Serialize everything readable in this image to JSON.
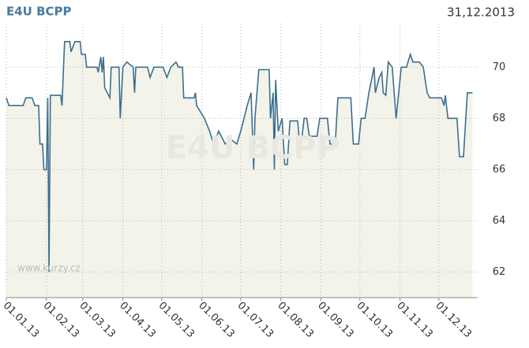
{
  "chart_data": {
    "type": "area",
    "title": "E4U BCPP",
    "subtitle": "31,12.2013",
    "watermark": "E4U BCPP",
    "source": "www.kurzy.cz",
    "xlim": [
      "2013-01-01",
      "2013-12-31"
    ],
    "xticks": [
      {
        "value": "2013-01-01",
        "label": "01.01.13"
      },
      {
        "value": "2013-02-01",
        "label": "01.02.13"
      },
      {
        "value": "2013-03-01",
        "label": "01.03.13"
      },
      {
        "value": "2013-04-01",
        "label": "01.04.13"
      },
      {
        "value": "2013-05-01",
        "label": "01.05.13"
      },
      {
        "value": "2013-06-01",
        "label": "01.06.13"
      },
      {
        "value": "2013-07-01",
        "label": "01.07.13"
      },
      {
        "value": "2013-08-01",
        "label": "01.08.13"
      },
      {
        "value": "2013-09-01",
        "label": "01.09.13"
      },
      {
        "value": "2013-10-01",
        "label": "01.10.13"
      },
      {
        "value": "2013-11-01",
        "label": "01.11.13"
      },
      {
        "value": "2013-12-01",
        "label": "01.12.13"
      }
    ],
    "ylim": [
      61,
      71.7
    ],
    "yticks": [
      62,
      64,
      66,
      68,
      70
    ],
    "grid": true,
    "series": [
      {
        "name": "E4U BCPP",
        "color": "#3c6f8f",
        "fill": "#f3f3ea",
        "x": [
          "2013-01-01",
          "2013-01-03",
          "2013-01-14",
          "2013-01-16",
          "2013-01-21",
          "2013-01-23",
          "2013-01-26",
          "2013-01-27",
          "2013-01-29",
          "2013-01-30",
          "2013-02-01",
          "2013-02-02",
          "2013-02-03",
          "2013-02-04",
          "2013-02-12",
          "2013-02-13",
          "2013-02-15",
          "2013-02-19",
          "2013-02-20",
          "2013-02-23",
          "2013-02-27",
          "2013-02-28",
          "2013-03-03",
          "2013-03-04",
          "2013-03-12",
          "2013-03-13",
          "2013-03-15",
          "2013-03-16",
          "2013-03-17",
          "2013-03-18",
          "2013-03-22",
          "2013-03-23",
          "2013-03-29",
          "2013-03-30",
          "2013-04-01",
          "2013-04-04",
          "2013-04-09",
          "2013-04-10",
          "2013-04-11",
          "2013-04-20",
          "2013-04-22",
          "2013-04-25",
          "2013-05-02",
          "2013-05-05",
          "2013-05-08",
          "2013-05-12",
          "2013-05-14",
          "2013-05-17",
          "2013-05-18",
          "2013-05-26",
          "2013-05-27",
          "2013-05-28",
          "2013-06-03",
          "2013-06-07",
          "2013-06-10",
          "2013-06-14",
          "2013-06-19",
          "2013-06-23",
          "2013-06-28",
          "2013-07-01",
          "2013-07-06",
          "2013-07-09",
          "2013-07-11",
          "2013-07-12",
          "2013-07-15",
          "2013-07-23",
          "2013-07-24",
          "2013-07-26",
          "2013-07-27",
          "2013-07-28",
          "2013-07-30",
          "2013-08-02",
          "2013-08-04",
          "2013-08-06",
          "2013-08-08",
          "2013-08-14",
          "2013-08-16",
          "2013-08-19",
          "2013-08-21",
          "2013-08-23",
          "2013-08-29",
          "2013-08-31",
          "2013-09-06",
          "2013-09-08",
          "2013-09-12",
          "2013-09-14",
          "2013-09-24",
          "2013-09-26",
          "2013-09-30",
          "2013-10-02",
          "2013-10-05",
          "2013-10-08",
          "2013-10-12",
          "2013-10-13",
          "2013-10-16",
          "2013-10-18",
          "2013-10-19",
          "2013-10-21",
          "2013-10-23",
          "2013-10-26",
          "2013-10-29",
          "2013-11-02",
          "2013-11-06",
          "2013-11-09",
          "2013-11-11",
          "2013-11-16",
          "2013-11-19",
          "2013-11-22",
          "2013-11-24",
          "2013-12-03",
          "2013-12-05",
          "2013-12-06",
          "2013-12-08",
          "2013-12-15",
          "2013-12-17",
          "2013-12-20",
          "2013-12-23",
          "2013-12-27"
        ],
        "values": [
          68.8,
          68.5,
          68.5,
          68.8,
          68.8,
          68.5,
          68.5,
          67.0,
          67.0,
          66.0,
          66.0,
          68.8,
          62.0,
          68.9,
          68.9,
          68.5,
          71.0,
          71.0,
          70.6,
          71.0,
          71.0,
          70.5,
          70.5,
          70.0,
          70.0,
          69.8,
          70.4,
          69.8,
          70.4,
          69.2,
          68.8,
          70.0,
          70.0,
          68.0,
          70.0,
          70.2,
          70.0,
          69.0,
          70.0,
          70.0,
          69.6,
          70.0,
          70.0,
          69.6,
          70.0,
          70.2,
          70.0,
          70.0,
          68.8,
          68.8,
          69.0,
          68.5,
          68.0,
          67.5,
          67.0,
          67.5,
          67.0,
          67.2,
          67.0,
          67.5,
          68.5,
          69.0,
          66.0,
          68.0,
          69.9,
          69.9,
          68.0,
          69.0,
          66.0,
          69.5,
          67.5,
          68.0,
          66.2,
          66.2,
          67.9,
          67.9,
          66.7,
          68.0,
          68.0,
          67.3,
          67.3,
          68.0,
          68.0,
          67.0,
          67.0,
          68.8,
          68.8,
          67.0,
          67.0,
          68.0,
          68.0,
          69.0,
          70.0,
          69.0,
          69.6,
          69.8,
          69.0,
          68.9,
          70.2,
          70.0,
          68.0,
          70.0,
          70.0,
          70.5,
          70.2,
          70.2,
          70.0,
          69.0,
          68.8,
          68.8,
          68.5,
          68.9,
          68.0,
          68.0,
          66.5,
          66.5,
          69.0,
          69.0
        ]
      }
    ]
  }
}
